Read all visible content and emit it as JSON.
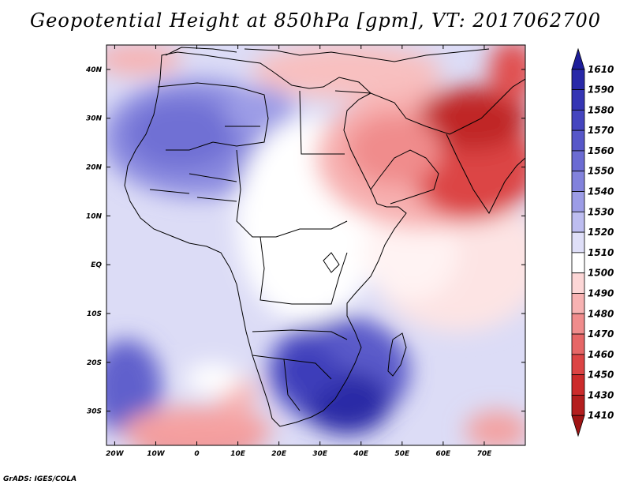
{
  "title": "Geopotential Height at 850hPa [gpm], VT: 2017062700",
  "credit": "GrADS: IGES/COLA",
  "map": {
    "lon_ticks": [
      "20W",
      "10W",
      "0",
      "10E",
      "20E",
      "30E",
      "40E",
      "50E",
      "60E",
      "70E"
    ],
    "lat_ticks": [
      "40N",
      "30N",
      "20N",
      "10N",
      "EQ",
      "10S",
      "20S",
      "30S"
    ],
    "lon_range": [
      -22,
      80
    ],
    "lat_range": [
      -37,
      45
    ]
  },
  "colorbar": {
    "levels": [
      "1610",
      "1590",
      "1580",
      "1570",
      "1560",
      "1550",
      "1540",
      "1530",
      "1520",
      "1510",
      "1500",
      "1490",
      "1480",
      "1470",
      "1460",
      "1450",
      "1430",
      "1410"
    ],
    "colors": [
      "#1e1e9a",
      "#2828a8",
      "#3535b4",
      "#4545bf",
      "#5757c9",
      "#6b6bd3",
      "#8282dc",
      "#9c9ce6",
      "#bdbdf0",
      "#dfdff8",
      "#ffffff",
      "#fcd6d6",
      "#f7b2b2",
      "#f08c8c",
      "#e66666",
      "#dc4444",
      "#cc2b2b",
      "#b41e1e",
      "#a01414"
    ]
  }
}
